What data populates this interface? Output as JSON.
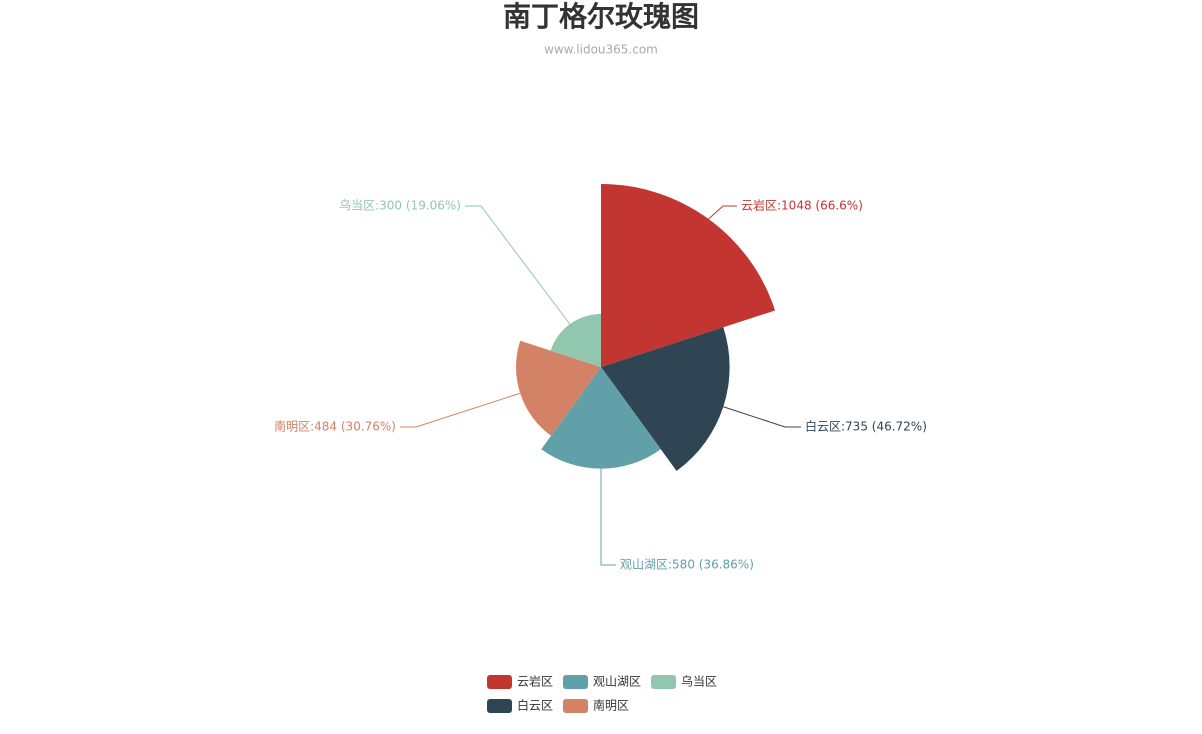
{
  "chart_data": {
    "type": "rose",
    "title": "南丁格尔玫瑰图",
    "subtitle": "www.lidou365.com",
    "categories": [
      "云岩区",
      "白云区",
      "观山湖区",
      "南明区",
      "乌当区"
    ],
    "values": [
      1048,
      735,
      580,
      484,
      300
    ],
    "value_labels": [
      "云岩区:1048 (66.6%)",
      "白云区:735 (46.72%)",
      "观山湖区:580 (36.86%)",
      "南明区:484 (30.76%)",
      "乌当区:300 (19.06%)"
    ],
    "colors": [
      "#c23531",
      "#2f4554",
      "#61a0a8",
      "#d48265",
      "#91c7ae"
    ],
    "legend": "bottom"
  }
}
